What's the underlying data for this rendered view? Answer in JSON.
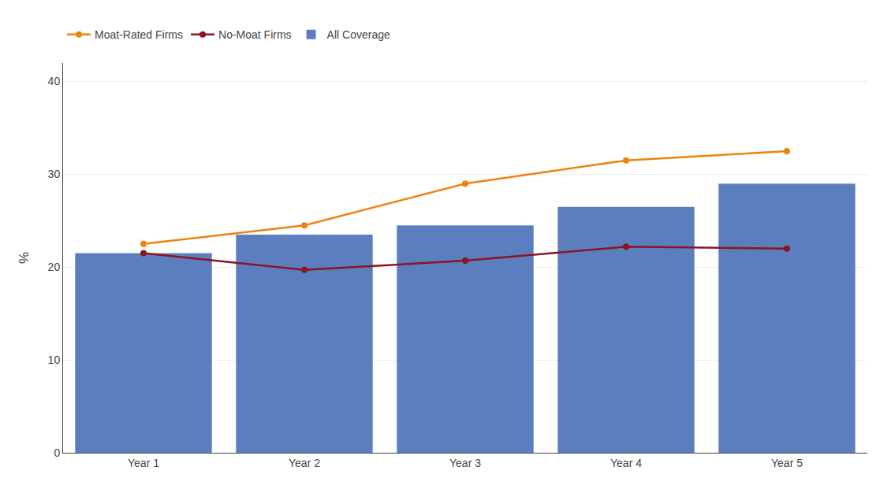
{
  "chart_data": {
    "type": "bar",
    "categories": [
      "Year 1",
      "Year 2",
      "Year 3",
      "Year 4",
      "Year 5"
    ],
    "series": [
      {
        "name": "Moat-Rated Firms",
        "type": "line",
        "color": "#f0820f",
        "marker": "circle",
        "values": [
          22.5,
          24.5,
          29.0,
          31.5,
          32.5
        ]
      },
      {
        "name": "No-Moat Firms",
        "type": "line",
        "color": "#8b1520",
        "marker": "circle",
        "values": [
          21.5,
          19.7,
          20.7,
          22.2,
          22.0
        ]
      },
      {
        "name": "All Coverage",
        "type": "bar",
        "color": "#5b7fbe",
        "values": [
          21.5,
          23.5,
          24.5,
          26.5,
          29.0
        ]
      }
    ],
    "ylabel": "%",
    "ylim": [
      0,
      42
    ],
    "yticks": [
      0,
      10,
      20,
      30,
      40
    ],
    "grid": true,
    "legend": "upper left"
  }
}
